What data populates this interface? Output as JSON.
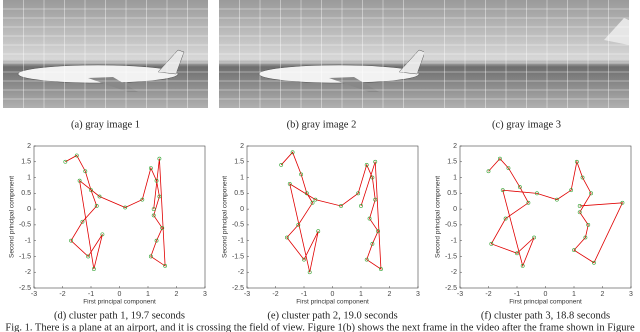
{
  "figure": {
    "images": [
      {
        "caption": "(a) gray image 1"
      },
      {
        "caption": "(b) gray image 2"
      },
      {
        "caption": "(c) gray image 3"
      }
    ],
    "plots": [
      {
        "type": "scatter",
        "caption": "(d) cluster path 1, 19.7 seconds",
        "x_label": "First principal component",
        "y_label": "Second principal component",
        "xlim": [
          -3,
          3
        ],
        "ylim": [
          -2.5,
          2
        ],
        "xticks": [
          -3,
          -2,
          -1,
          0,
          1,
          2,
          3
        ],
        "yticks": [
          2,
          1.5,
          1,
          0.5,
          0,
          -0.5,
          -1,
          -1.5,
          -2,
          -2.5
        ],
        "color": "#2ca02c",
        "line_color": "#e00000",
        "x": [
          -1.9,
          -1.5,
          -1.2,
          -1.0,
          -0.8,
          -1.3,
          -1.7,
          -1.1,
          -0.6,
          -0.9,
          -1.4,
          -0.7,
          0.2,
          0.8,
          1.1,
          1.3,
          1.4,
          1.2,
          1.5,
          1.3,
          1.1,
          1.6,
          1.4,
          1.2
        ],
        "y": [
          1.5,
          1.7,
          1.2,
          0.6,
          0.1,
          -0.4,
          -1.0,
          -1.5,
          -0.8,
          -1.9,
          0.9,
          0.4,
          0.05,
          0.3,
          1.3,
          0.9,
          0.4,
          -0.2,
          -0.6,
          -1.0,
          -1.5,
          -1.8,
          1.6,
          0.0
        ]
      },
      {
        "type": "scatter",
        "caption": "(e) cluster path 2, 19.0 seconds",
        "x_label": "First principal component",
        "y_label": "Second principal component",
        "xlim": [
          -3,
          3
        ],
        "ylim": [
          -2.5,
          2
        ],
        "xticks": [
          -3,
          -2,
          -1,
          0,
          1,
          2,
          3
        ],
        "yticks": [
          2,
          1.5,
          1,
          0.5,
          0,
          -0.5,
          -1,
          -1.5,
          -2,
          -2.5
        ],
        "color": "#2ca02c",
        "line_color": "#e00000",
        "x": [
          -1.8,
          -1.4,
          -1.1,
          -0.9,
          -0.7,
          -1.2,
          -1.6,
          -1.0,
          -0.5,
          -0.8,
          -1.5,
          -0.6,
          0.3,
          0.9,
          1.2,
          1.4,
          1.5,
          1.3,
          1.6,
          1.4,
          1.2,
          1.7,
          1.5,
          1.0
        ],
        "y": [
          1.4,
          1.8,
          1.1,
          0.5,
          0.2,
          -0.5,
          -0.9,
          -1.6,
          -0.7,
          -2.0,
          0.8,
          0.3,
          0.1,
          0.5,
          1.4,
          1.0,
          0.3,
          -0.3,
          -0.7,
          -1.1,
          -1.6,
          -1.9,
          1.5,
          0.1
        ]
      },
      {
        "type": "scatter",
        "caption": "(f) cluster path 3, 18.8 seconds",
        "x_label": "First principal component",
        "y_label": "Second principal component",
        "xlim": [
          -3,
          3
        ],
        "ylim": [
          -2.5,
          2
        ],
        "xticks": [
          -3,
          -2,
          -1,
          0,
          1,
          2,
          3
        ],
        "yticks": [
          2,
          1.5,
          1,
          0.5,
          0,
          -0.5,
          -1,
          -1.5,
          -2,
          -2.5
        ],
        "color": "#2ca02c",
        "line_color": "#e00000",
        "x": [
          -2.0,
          -1.6,
          -1.3,
          -0.9,
          -0.6,
          -1.4,
          -1.9,
          -1.0,
          -0.4,
          -0.8,
          -1.5,
          -0.3,
          0.4,
          0.9,
          1.1,
          1.3,
          1.6,
          1.2,
          1.5,
          1.4,
          1.0,
          1.7,
          2.7,
          1.2
        ],
        "y": [
          1.2,
          1.6,
          1.3,
          0.7,
          0.2,
          -0.3,
          -1.1,
          -1.4,
          -0.9,
          -1.8,
          0.6,
          0.5,
          0.3,
          0.6,
          1.5,
          1.0,
          0.5,
          -0.1,
          -0.5,
          -0.9,
          -1.3,
          -1.7,
          0.2,
          0.1
        ]
      }
    ]
  },
  "caption": "Fig. 1. There is a plane at an airport, and it is crossing the field of view. Figure 1(b) shows the next frame in the video after the frame shown in Figure"
}
